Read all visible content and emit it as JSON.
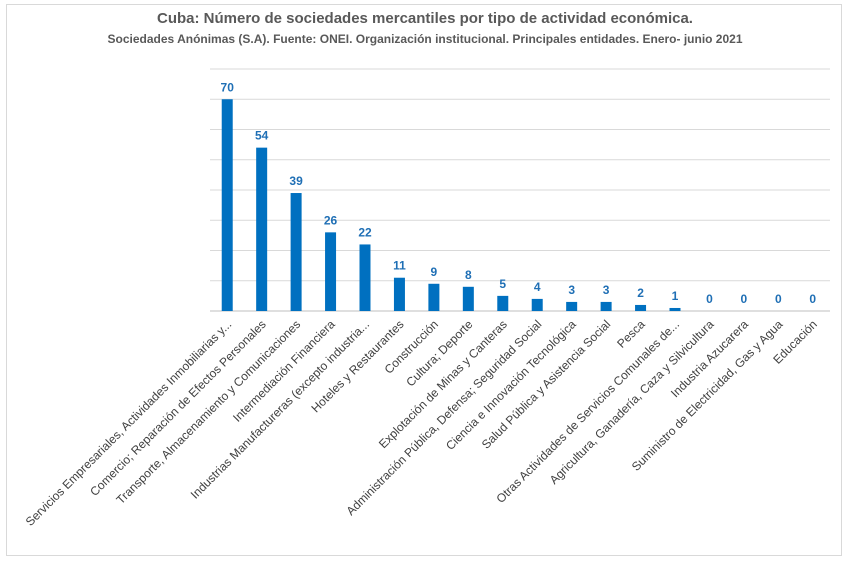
{
  "chart_data": {
    "type": "bar",
    "title": "Cuba: Número de sociedades mercantiles por tipo de actividad económica.",
    "subtitle": "Sociedades Anónimas (S.A). Fuente: ONEI. Organización institucional. Principales entidades. Enero- junio 2021",
    "categories": [
      "Servicios Empresariales, Actividades Inmobiliarias y...",
      "Comercio; Reparación de Efectos Personales",
      "Transporte, Almacenamiento y Comunicaciones",
      "Intermediación Financiera",
      "Industrias Manufactureras (excepto industria...",
      "Hoteles y Restaurantes",
      "Construcción",
      "Cultura; Deporte",
      "Explotación de Minas y Canteras",
      "Administración Pública, Defensa; Seguridad Social",
      "Ciencia e Innovación Tecnológica",
      "Salud Pública y Asistencia Social",
      "Pesca",
      "Otras  Actividades de Servicios Comunales  de...",
      "Agricultura, Ganadería, Caza y Silvicultura",
      "Industria Azucarera",
      "Suministro de Electricidad, Gas y Agua",
      "Educación"
    ],
    "values": [
      70,
      54,
      39,
      26,
      22,
      11,
      9,
      8,
      5,
      4,
      3,
      3,
      2,
      1,
      0,
      0,
      0,
      0
    ],
    "ylim": [
      0,
      80
    ],
    "grid": true,
    "legend": "none",
    "bar_color": "#0070c0",
    "label_color": "#1f6fb5"
  }
}
